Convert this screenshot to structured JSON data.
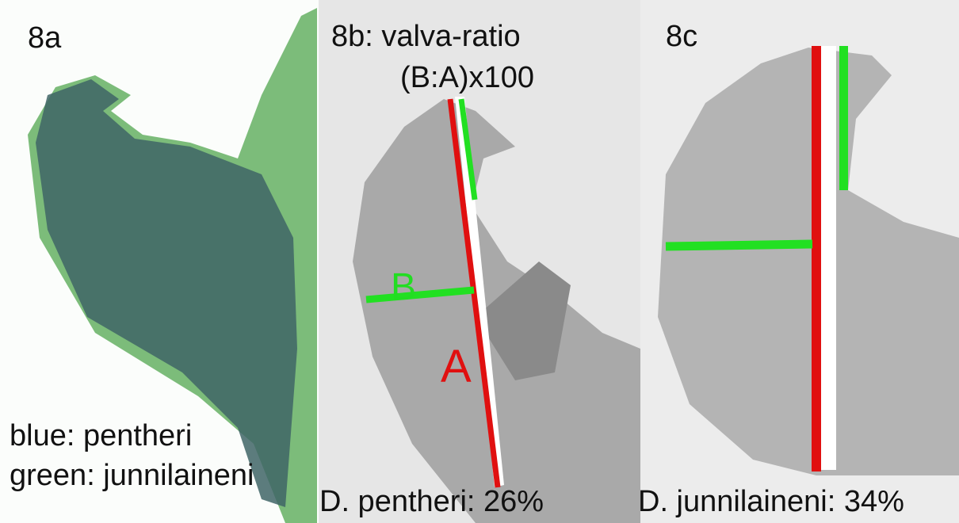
{
  "panels": [
    {
      "label": "8a",
      "legend": [
        "blue: pentheri",
        "green: junnilaineni"
      ]
    },
    {
      "label": "8b: valva-ratio",
      "formula": "(B:A)x100",
      "marks": [
        "B",
        "A"
      ],
      "caption": "D. pentheri: 26%"
    },
    {
      "label": "8c",
      "caption": "D. junnilaineni: 34%"
    }
  ]
}
